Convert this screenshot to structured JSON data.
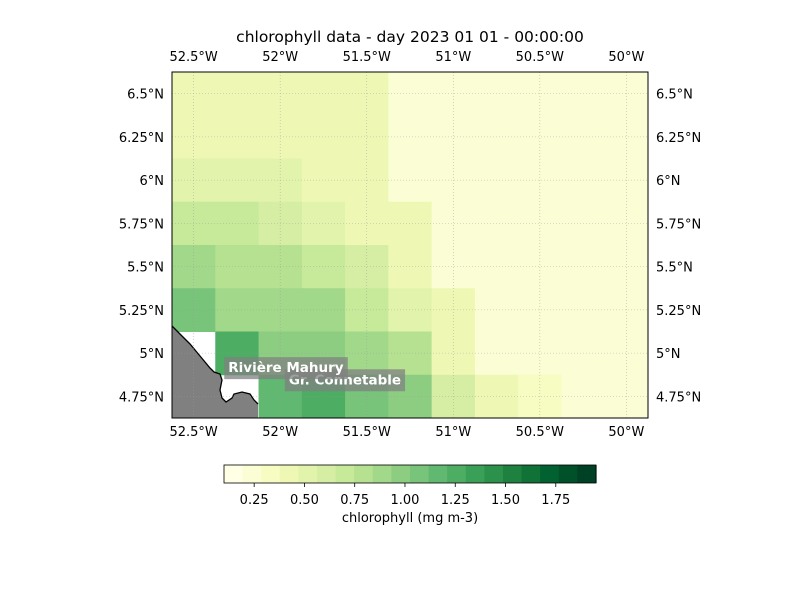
{
  "title": "chlorophyll data - day 2023 01 01 - 00:00:00",
  "lon_ticks": [
    "52.5°W",
    "52°W",
    "51.5°W",
    "51°W",
    "50.5°W",
    "50°W"
  ],
  "lat_ticks": [
    "6.5°N",
    "6.25°N",
    "6°N",
    "5.75°N",
    "5.5°N",
    "5.25°N",
    "5°N",
    "4.75°N"
  ],
  "lon_values": [
    -52.5,
    -52.0,
    -51.5,
    -51.0,
    -50.5,
    -50.0
  ],
  "lat_values": [
    6.5,
    6.25,
    6.0,
    5.75,
    5.5,
    5.25,
    5.0,
    4.75
  ],
  "extent": {
    "lon_min": -52.625,
    "lon_max": -49.875,
    "lat_min": 4.625,
    "lat_max": 6.625
  },
  "colorbar": {
    "label": "chlorophyll (mg m-3)",
    "vmin": 0.1,
    "vmax": 1.95,
    "ticks": [
      "0.25",
      "0.50",
      "0.75",
      "1.00",
      "1.25",
      "1.50",
      "1.75"
    ],
    "tick_values": [
      0.25,
      0.5,
      0.75,
      1.0,
      1.25,
      1.5,
      1.75
    ],
    "colors": [
      "#ffffe5",
      "#fbfdd4",
      "#f7fcc2",
      "#eef8b4",
      "#e2f3ab",
      "#d5eea3",
      "#c6e99a",
      "#b5e191",
      "#a2d88a",
      "#8ccd82",
      "#77c47a",
      "#61b870",
      "#4cad63",
      "#3ba057",
      "#2c914b",
      "#1f8140",
      "#107237",
      "#026130",
      "#00512a",
      "#004024"
    ]
  },
  "land_color": "#808080",
  "coastline_color": "#000000",
  "place_labels": [
    {
      "name": "Gr. Connetable",
      "lon": -51.95,
      "lat": 4.82
    },
    {
      "name": "Rivière Mahury",
      "lon": -52.3,
      "lat": 4.89
    }
  ],
  "chart_data": {
    "type": "heatmap",
    "title": "chlorophyll data - day 2023 01 01 - 00:00:00",
    "cell_size_deg": 0.25,
    "lat_centers_top_to_bottom": [
      6.5,
      6.25,
      6.0,
      5.75,
      5.5,
      5.25,
      5.0,
      4.75
    ],
    "lon_centers_left_to_right": [
      -52.5,
      -52.25,
      -52.0,
      -51.75,
      -51.5,
      -51.25,
      -51.0,
      -50.75,
      -50.5,
      -50.25,
      -50.0
    ],
    "values": [
      [
        0.45,
        0.45,
        0.45,
        0.45,
        0.45,
        0.25,
        0.25,
        0.25,
        0.25,
        0.25,
        0.25
      ],
      [
        0.45,
        0.45,
        0.45,
        0.45,
        0.45,
        0.25,
        0.25,
        0.25,
        0.25,
        0.25,
        0.25
      ],
      [
        0.55,
        0.55,
        0.55,
        0.45,
        0.45,
        0.25,
        0.25,
        0.25,
        0.25,
        0.25,
        0.25
      ],
      [
        0.7,
        0.7,
        0.6,
        0.55,
        0.4,
        0.4,
        0.25,
        0.25,
        0.25,
        0.25,
        0.25
      ],
      [
        0.85,
        0.75,
        0.75,
        0.7,
        0.6,
        0.45,
        0.25,
        0.25,
        0.25,
        0.25,
        0.25
      ],
      [
        1.05,
        0.9,
        0.85,
        0.85,
        0.7,
        0.55,
        0.4,
        0.25,
        0.25,
        0.25,
        0.25
      ],
      [
        null,
        1.25,
        1.0,
        0.95,
        0.85,
        0.75,
        0.4,
        0.25,
        0.25,
        0.25,
        0.25
      ],
      [
        null,
        null,
        1.15,
        1.3,
        1.1,
        1.0,
        0.6,
        0.45,
        0.3,
        0.25,
        0.25
      ]
    ],
    "xlabel": "",
    "ylabel": "",
    "grid": true
  }
}
